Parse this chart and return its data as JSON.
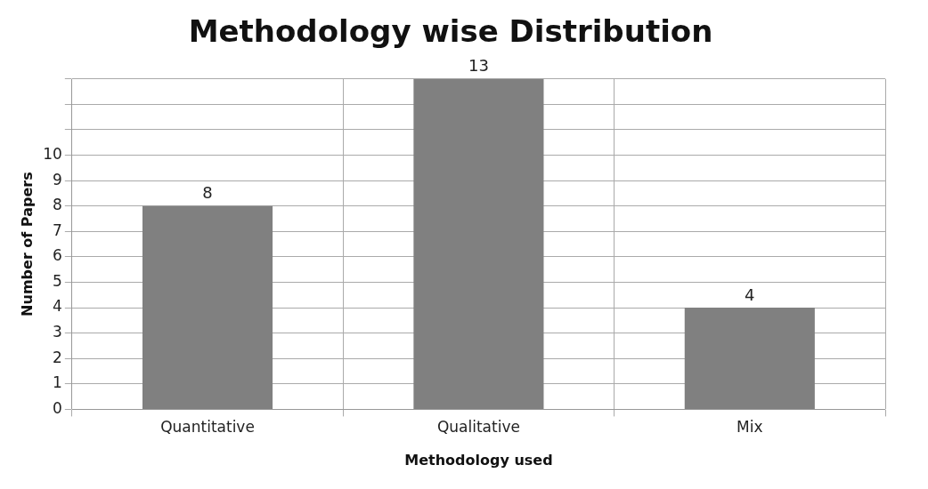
{
  "chart_data": {
    "type": "bar",
    "title": "Methodology wise Distribution",
    "xlabel": "Methodology used",
    "ylabel": "Number of Papers",
    "categories": [
      "Quantitative",
      "Qualitative",
      "Mix"
    ],
    "values": [
      8,
      13,
      4
    ],
    "color": "#808080",
    "data_labels": true,
    "ylim": [
      0,
      13
    ],
    "yticks": [
      0,
      1,
      2,
      3,
      4,
      5,
      6,
      7,
      8,
      9,
      10,
      {
        "value": 11,
        "label": null
      },
      {
        "value": 12,
        "label": null
      },
      {
        "value": 13,
        "label": null
      }
    ],
    "grid": true,
    "legend": false
  }
}
